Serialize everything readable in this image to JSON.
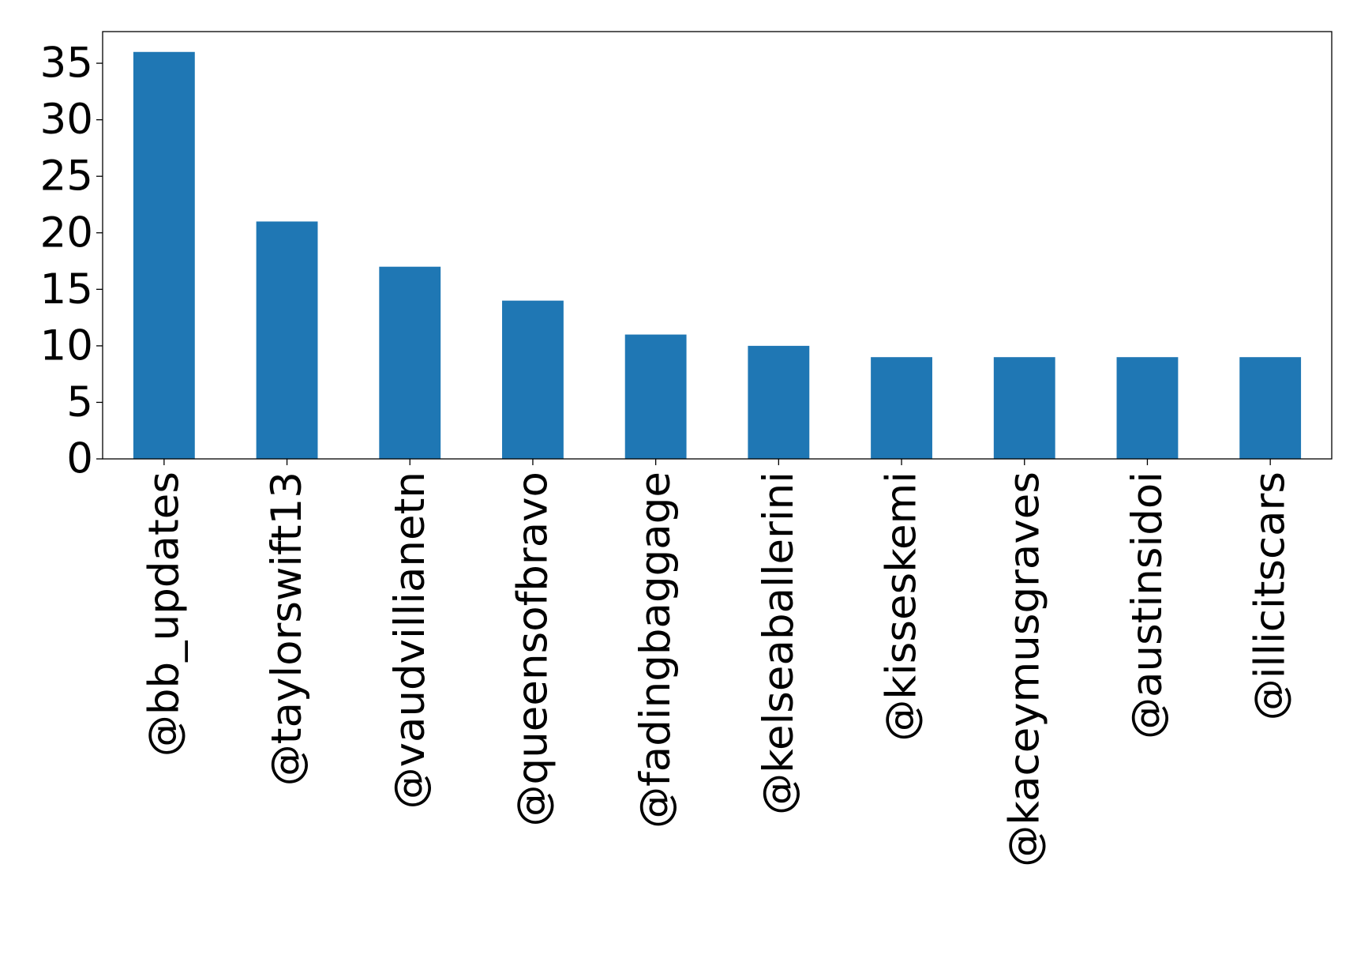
{
  "chart_data": {
    "type": "bar",
    "title": "",
    "xlabel": "",
    "ylabel": "",
    "categories": [
      "@bb_updates",
      "@taylorswift13",
      "@vaudvillianetn",
      "@queensofbravo",
      "@fadingbaggage",
      "@kelseaballerini",
      "@kisseskemi",
      "@kaceymusgraves",
      "@austinsidoi",
      "@illicitscars"
    ],
    "values": [
      36,
      21,
      17,
      14,
      11,
      10,
      9,
      9,
      9,
      9
    ],
    "ylim": [
      0,
      37.8
    ],
    "yticks": [
      0,
      5,
      10,
      15,
      20,
      25,
      30,
      35
    ],
    "grid": false,
    "legend": "none",
    "bar_color": "#1f77b4"
  }
}
